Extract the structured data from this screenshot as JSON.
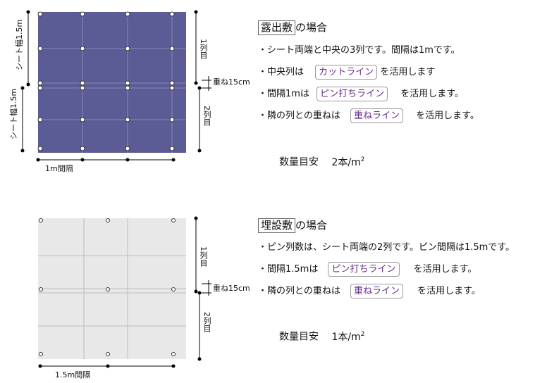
{
  "diagram1": {
    "sheet_w_top": "シート幅1.5m",
    "sheet_w_bottom": "シート幅1.5m",
    "row1": "1列目",
    "row2": "2列目",
    "overlap": "重ね15cm",
    "spacing": "1m間隔",
    "colors": {
      "sheet": "#5b5b95",
      "grid": "#8a8ab8"
    }
  },
  "text1": {
    "header_boxed": "露出敷",
    "header_rest": "の場合",
    "line1": "・シート両端と中央の3列です。間隔は1mです。",
    "line2_pre": "・中央列は",
    "line2_pill": "カットライン",
    "line2_post": "を活用します",
    "line3_pre": "・間隔1mは",
    "line3_pill": "ピン打ちライン",
    "line3_post": "を活用します。",
    "line4_pre": "・隣の列との重ねは",
    "line4_pill": "重ねライン",
    "line4_post": "を活用します。",
    "summary_label": "数量目安",
    "summary_value": "2本/m",
    "summary_sup": "2"
  },
  "diagram2": {
    "row1": "1列目",
    "row2": "2列目",
    "overlap": "重ね15cm",
    "spacing": "1.5m間隔",
    "colors": {
      "sheet": "#e8e8e8",
      "grid": "#bbbbbb"
    }
  },
  "text2": {
    "header_boxed": "埋設敷",
    "header_rest": "の場合",
    "line1": "・ピン列数は、シート両端の2列です。ピン間隔は1.5mです。",
    "line2_pre": "・間隔1.5mは",
    "line2_pill": "ピン打ちライン",
    "line2_post": "を活用します。",
    "line3_pre": "・隣の列との重ねは",
    "line3_pill": "重ねライン",
    "line3_post": "を活用します。",
    "summary_label": "数量目安",
    "summary_value": "1本/m",
    "summary_sup": "2"
  }
}
